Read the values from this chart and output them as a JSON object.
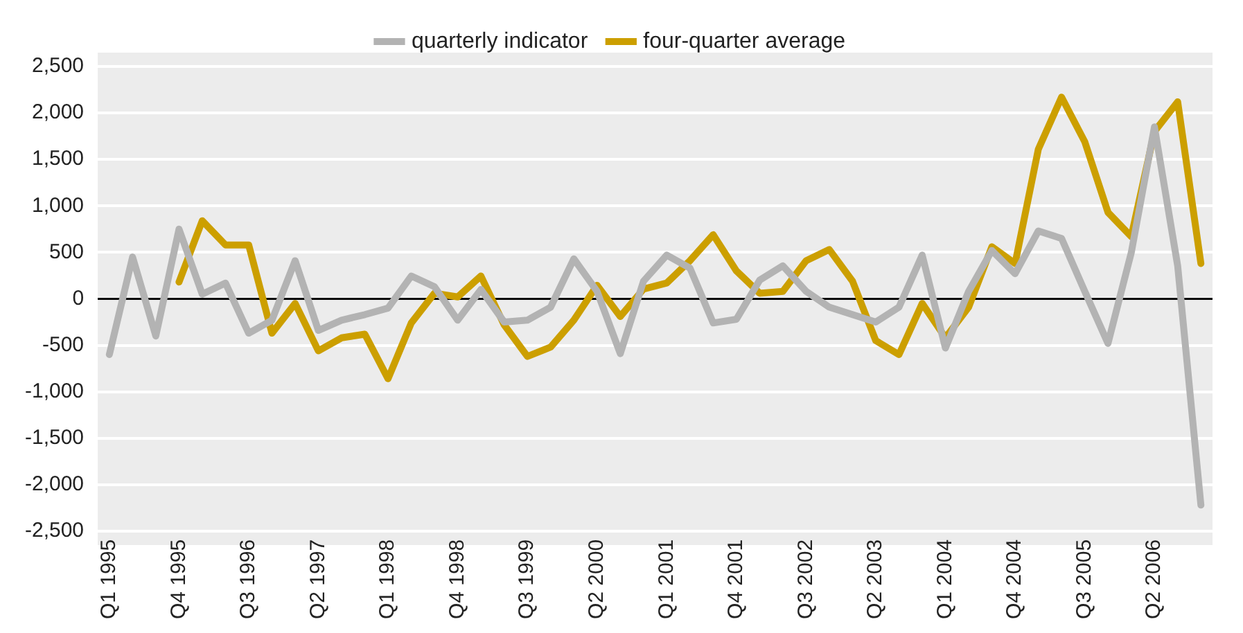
{
  "chart_data": {
    "type": "line",
    "categories": [
      "Q1 1995",
      null,
      null,
      "Q4 1995",
      null,
      null,
      "Q3 1996",
      null,
      null,
      "Q2 1997",
      null,
      null,
      "Q1 1998",
      null,
      null,
      "Q4 1998",
      null,
      null,
      "Q3 1999",
      null,
      null,
      "Q2 2000",
      null,
      null,
      "Q1 2001",
      null,
      null,
      "Q4 2001",
      null,
      null,
      "Q3 2002",
      null,
      null,
      "Q2 2003",
      null,
      null,
      "Q1 2004",
      null,
      null,
      "Q4 2004",
      null,
      null,
      "Q3 2005",
      null,
      null,
      "Q2 2006",
      null,
      null
    ],
    "series": [
      {
        "name": "quarterly indicator",
        "color": "#b3b3b3",
        "values": [
          -600,
          450,
          -400,
          750,
          50,
          170,
          -370,
          -230,
          410,
          -340,
          -230,
          -170,
          -100,
          245,
          130,
          -230,
          100,
          -250,
          -230,
          -90,
          430,
          80,
          -590,
          190,
          470,
          330,
          -260,
          -220,
          200,
          355,
          80,
          -90,
          -170,
          -250,
          -90,
          470,
          -530,
          80,
          520,
          270,
          730,
          650,
          80,
          -480,
          495,
          1850,
          355,
          -2220
        ]
      },
      {
        "name": "four-quarter average",
        "color": "#cc9f00",
        "values": [
          null,
          null,
          null,
          180,
          840,
          580,
          580,
          -370,
          -50,
          -560,
          -420,
          -380,
          -860,
          -260,
          60,
          20,
          245,
          -280,
          -620,
          -520,
          -230,
          145,
          -190,
          105,
          170,
          410,
          690,
          300,
          60,
          80,
          410,
          530,
          190,
          -450,
          -600,
          -50,
          -420,
          -90,
          560,
          380,
          1610,
          2170,
          1690,
          930,
          670,
          1800,
          2120,
          380
        ]
      }
    ],
    "ylim": [
      -2500,
      2500
    ],
    "yticks": [
      {
        "value": -2500,
        "label": "-2,500"
      },
      {
        "value": -2000,
        "label": "-2,000"
      },
      {
        "value": -1500,
        "label": "-1,500"
      },
      {
        "value": -1000,
        "label": "-1,000"
      },
      {
        "value": -500,
        "label": "-500"
      },
      {
        "value": 0,
        "label": "0"
      },
      {
        "value": 500,
        "label": "500"
      },
      {
        "value": 1000,
        "label": "1,000"
      },
      {
        "value": 1500,
        "label": "1,500"
      },
      {
        "value": 2000,
        "label": "2,000"
      },
      {
        "value": 2500,
        "label": "2,500"
      }
    ],
    "ref_lines": [
      {
        "axis": "y",
        "value": 0,
        "color": "#000000"
      }
    ],
    "grid": "y",
    "legend": "top",
    "marker": "none",
    "line_style": "solid"
  }
}
